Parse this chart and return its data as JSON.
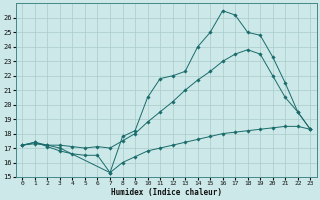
{
  "title": "",
  "xlabel": "Humidex (Indice chaleur)",
  "bg_color": "#cce8e8",
  "line_color": "#1a6b6b",
  "grid_color": "#aacccc",
  "xlim": [
    -0.5,
    23.5
  ],
  "ylim": [
    15,
    27
  ],
  "yticks": [
    15,
    16,
    17,
    18,
    19,
    20,
    21,
    22,
    23,
    24,
    25,
    26
  ],
  "xticks": [
    0,
    1,
    2,
    3,
    4,
    5,
    6,
    7,
    8,
    9,
    10,
    11,
    12,
    13,
    14,
    15,
    16,
    17,
    18,
    19,
    20,
    21,
    22,
    23
  ],
  "series": [
    {
      "x": [
        0,
        1,
        2,
        3,
        4,
        5,
        6,
        7,
        8,
        9,
        10,
        11,
        12,
        13,
        14,
        15,
        16,
        17,
        18,
        19,
        20,
        21,
        22,
        23
      ],
      "y": [
        17.2,
        17.4,
        17.1,
        16.8,
        16.6,
        16.5,
        16.5,
        15.3,
        16.0,
        16.4,
        16.8,
        17.0,
        17.2,
        17.4,
        17.6,
        17.8,
        18.0,
        18.1,
        18.2,
        18.3,
        18.4,
        18.5,
        18.5,
        18.3
      ]
    },
    {
      "x": [
        0,
        1,
        2,
        3,
        4,
        5,
        6,
        7,
        8,
        9,
        10,
        11,
        12,
        13,
        14,
        15,
        16,
        17,
        18,
        19,
        20,
        21,
        22,
        23
      ],
      "y": [
        17.2,
        17.3,
        17.2,
        17.2,
        17.1,
        17.0,
        17.1,
        17.0,
        17.5,
        18.0,
        18.8,
        19.5,
        20.2,
        21.0,
        21.7,
        22.3,
        23.0,
        23.5,
        23.8,
        23.5,
        22.0,
        20.5,
        19.5,
        18.3
      ]
    },
    {
      "x": [
        0,
        1,
        2,
        3,
        7,
        8,
        9,
        10,
        11,
        12,
        13,
        14,
        15,
        16,
        17,
        18,
        19,
        20,
        21,
        22,
        23
      ],
      "y": [
        17.2,
        17.4,
        17.2,
        17.0,
        15.3,
        17.8,
        18.2,
        20.5,
        21.8,
        22.0,
        22.3,
        24.0,
        25.0,
        26.5,
        26.2,
        25.0,
        24.8,
        23.3,
        21.5,
        19.5,
        18.3
      ]
    }
  ]
}
